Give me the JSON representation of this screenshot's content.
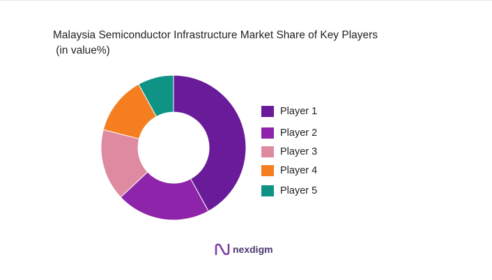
{
  "chart_data": {
    "type": "pie",
    "title_line1": "Malaysia Semiconductor Infrastructure Market Share of Key Players",
    "title_line2": " (in value%)",
    "donut": true,
    "legend_position": "right",
    "categories": [
      "Player 1",
      "Player 2",
      "Player 3",
      "Player 4",
      "Player 5"
    ],
    "values": [
      42,
      21,
      16,
      13,
      8
    ],
    "colors": [
      "#6a1b9a",
      "#8e24aa",
      "#de8aa0",
      "#f57f20",
      "#0e9384"
    ]
  },
  "brand": {
    "name": "nexdigm",
    "color": "#4a3670"
  }
}
